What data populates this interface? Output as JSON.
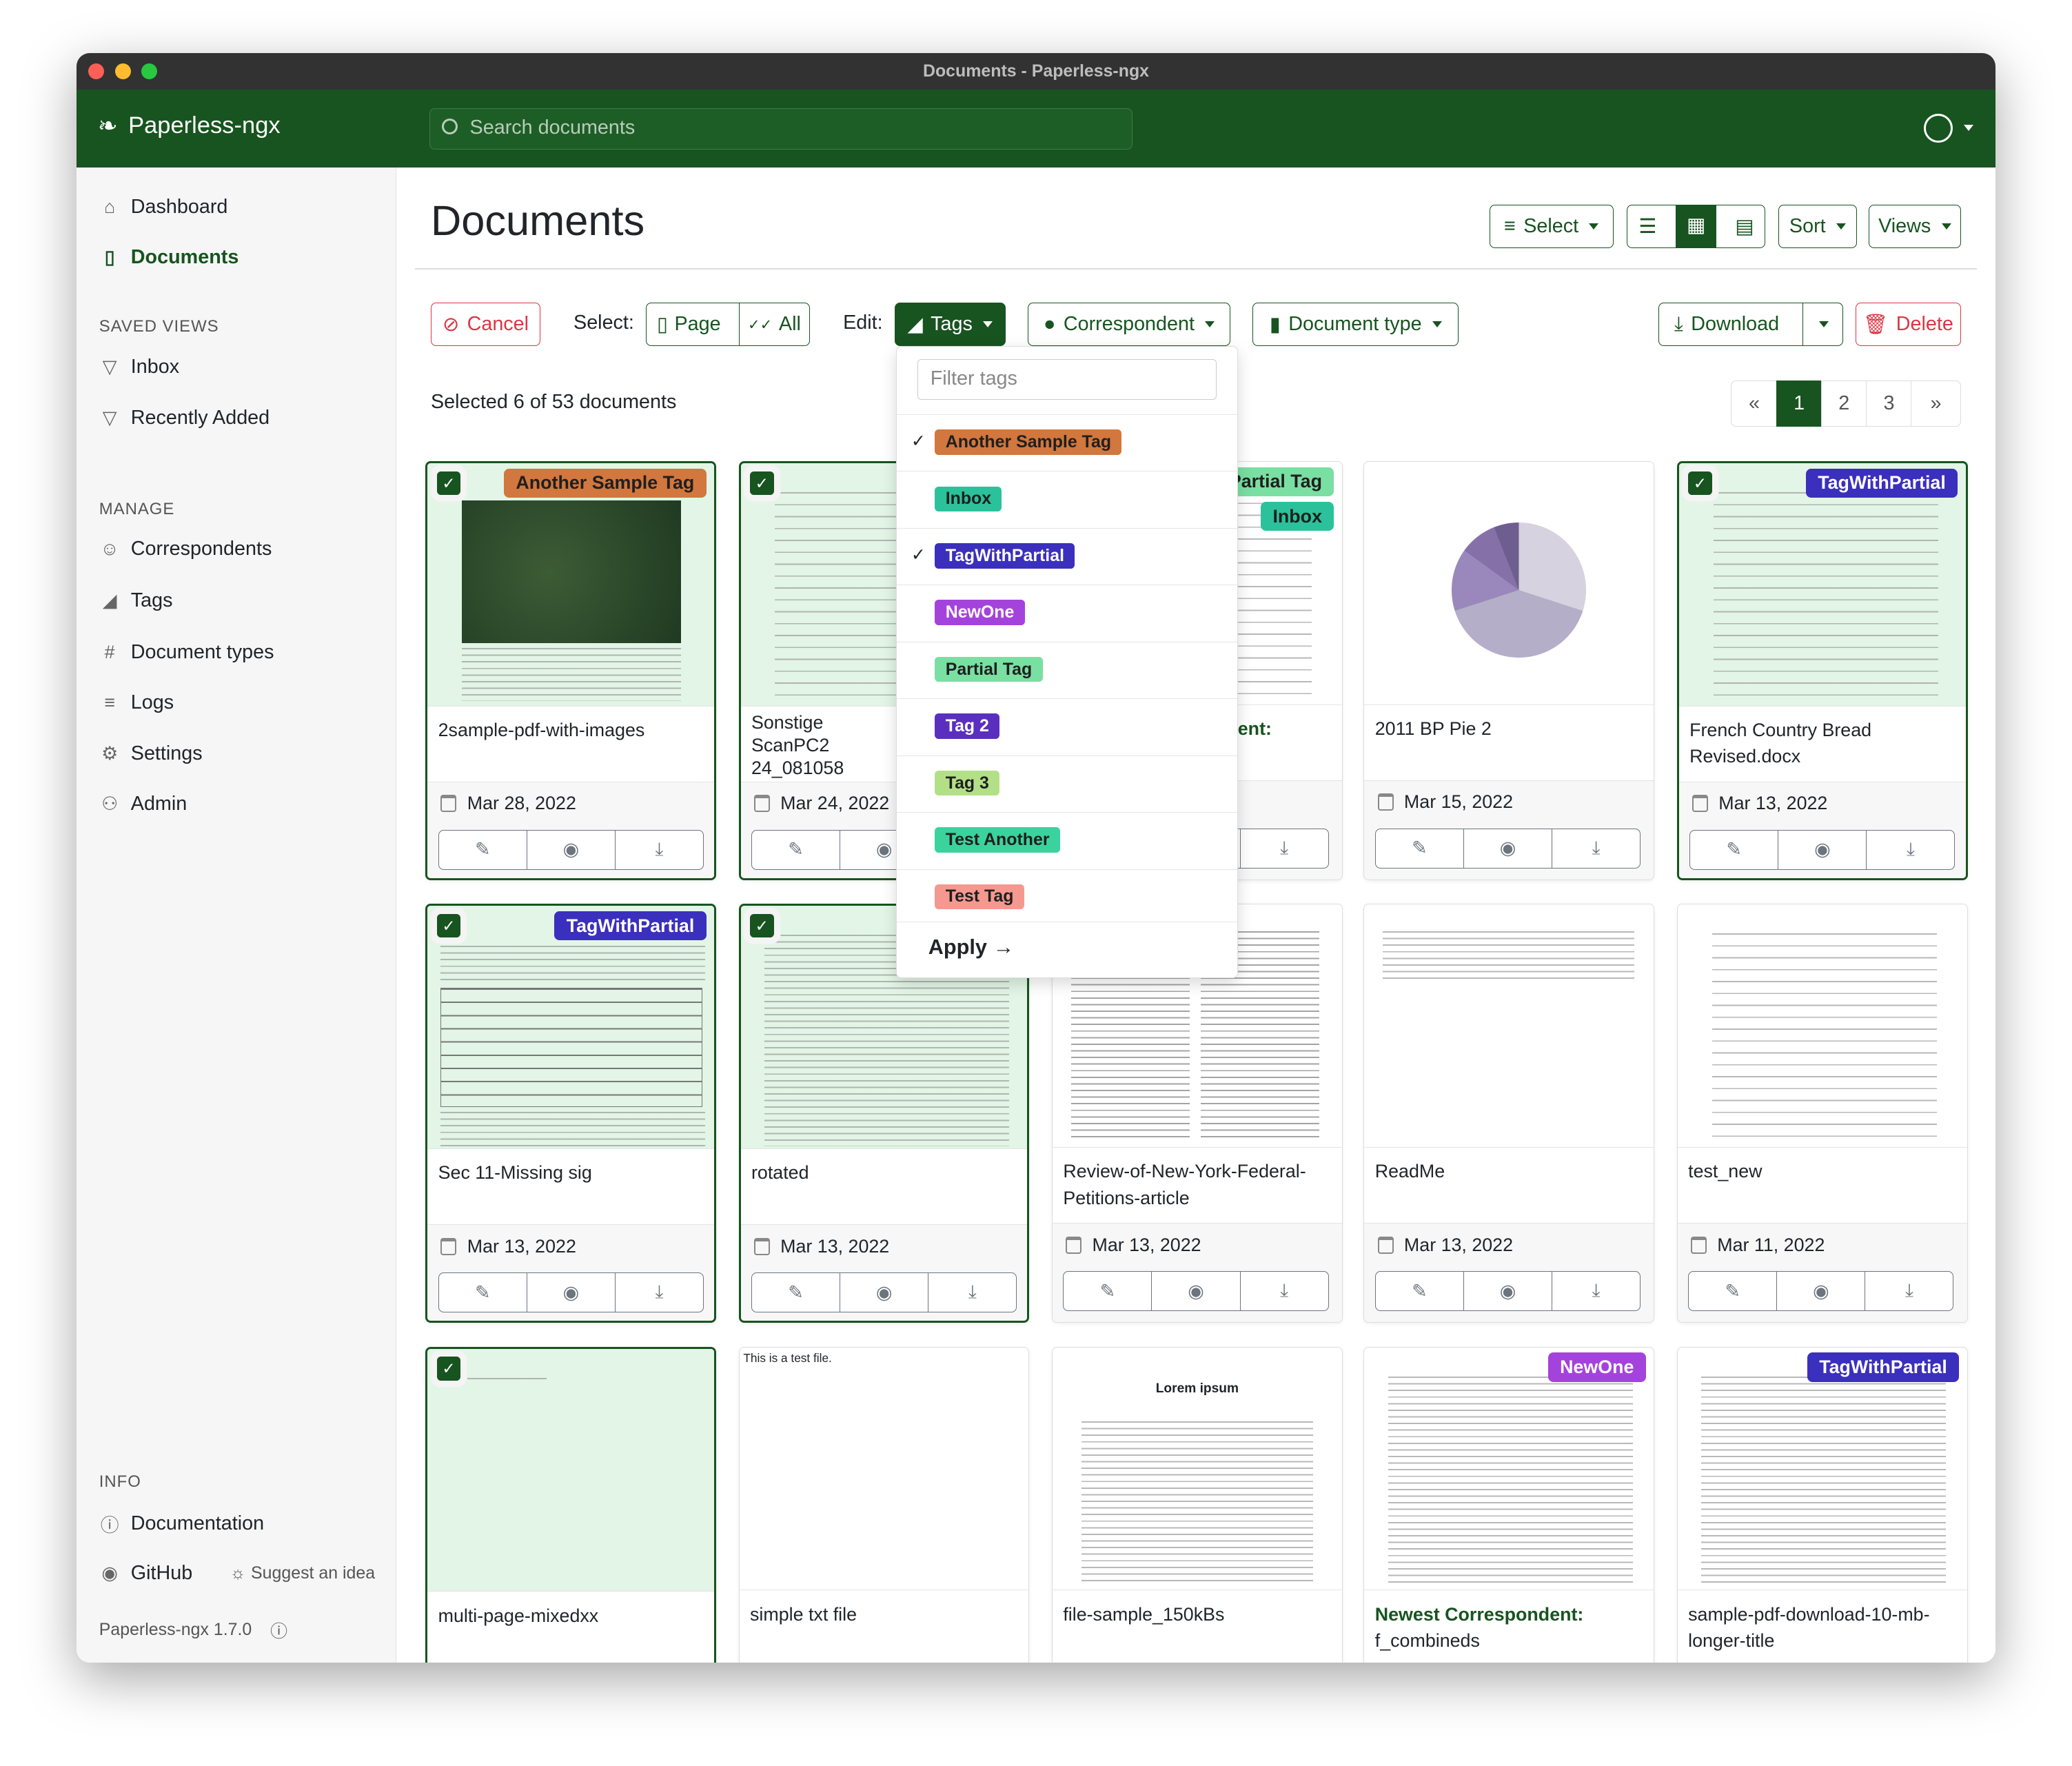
{
  "window": {
    "title": "Documents - Paperless-ngx"
  },
  "header": {
    "app_name": "Paperless-ngx",
    "search_placeholder": "Search documents"
  },
  "sidebar": {
    "items": [
      {
        "label": "Dashboard",
        "icon": "house-icon"
      },
      {
        "label": "Documents",
        "icon": "file-icon",
        "active": true
      }
    ],
    "saved_views_heading": "SAVED VIEWS",
    "saved_views": [
      {
        "label": "Inbox"
      },
      {
        "label": "Recently Added"
      }
    ],
    "manage_heading": "MANAGE",
    "manage": [
      {
        "label": "Correspondents",
        "icon": "person-icon"
      },
      {
        "label": "Tags",
        "icon": "tag-icon"
      },
      {
        "label": "Document types",
        "icon": "hash-icon"
      },
      {
        "label": "Logs",
        "icon": "list-icon"
      },
      {
        "label": "Settings",
        "icon": "gear-icon"
      },
      {
        "label": "Admin",
        "icon": "people-icon"
      }
    ],
    "info_heading": "INFO",
    "documentation": "Documentation",
    "github": "GitHub",
    "suggest": "Suggest an idea",
    "version": "Paperless-ngx 1.7.0"
  },
  "page": {
    "title": "Documents",
    "select": "Select",
    "sort": "Sort",
    "views": "Views"
  },
  "bulk": {
    "cancel": "Cancel",
    "select_label": "Select:",
    "page": "Page",
    "all": "All",
    "edit_label": "Edit:",
    "tags": "Tags",
    "correspondent": "Correspondent",
    "document_type": "Document type",
    "download": "Download",
    "delete": "Delete",
    "selected_text": "Selected 6 of 53 documents"
  },
  "pagination": {
    "prev": "«",
    "pages": [
      "1",
      "2",
      "3"
    ],
    "current": "1",
    "next": "»"
  },
  "tag_dropdown": {
    "filter_placeholder": "Filter tags",
    "apply": "Apply →",
    "tags": [
      {
        "name": "Another Sample Tag",
        "color": "#d2773d",
        "text": "#1f1f1f",
        "checked": true
      },
      {
        "name": "Inbox",
        "color": "#2bc29b",
        "text": "#1f1f1f",
        "checked": false
      },
      {
        "name": "TagWithPartial",
        "color": "#3b2fbd",
        "text": "#ffffff",
        "checked": true
      },
      {
        "name": "NewOne",
        "color": "#a443dc",
        "text": "#ffffff",
        "checked": false
      },
      {
        "name": "Partial Tag",
        "color": "#7adfa2",
        "text": "#1f1f1f",
        "checked": false
      },
      {
        "name": "Tag 2",
        "color": "#5a2fc0",
        "text": "#ffffff",
        "checked": false
      },
      {
        "name": "Tag 3",
        "color": "#b3e086",
        "text": "#1f1f1f",
        "checked": false
      },
      {
        "name": "Test Another",
        "color": "#3bd39d",
        "text": "#1f1f1f",
        "checked": false
      },
      {
        "name": "Test Tag",
        "color": "#f5988f",
        "text": "#1f1f1f",
        "checked": false
      }
    ]
  },
  "documents": [
    {
      "title": "2sample-pdf-with-images",
      "date": "Mar 28, 2022",
      "selected": true,
      "tags": [
        "Another Sample Tag"
      ],
      "thumb": "map"
    },
    {
      "title": "Sonstige ScanPC2 24_081058",
      "date": "Mar 24, 2022",
      "selected": true,
      "tags": [],
      "thumb": "text"
    },
    {
      "title": "",
      "correspondent": "Newest Correspondent:",
      "date": "",
      "selected": false,
      "tags": [
        "Partial Tag",
        "Inbox"
      ],
      "thumb": "text"
    },
    {
      "title": "2011 BP Pie 2",
      "date": "Mar 15, 2022",
      "selected": false,
      "tags": [],
      "thumb": "pie"
    },
    {
      "title": "French Country Bread Revised.docx",
      "date": "Mar 13, 2022",
      "selected": true,
      "tags": [
        "TagWithPartial"
      ],
      "thumb": "text"
    },
    {
      "title": "Sec 11-Missing sig",
      "date": "Mar 13, 2022",
      "selected": true,
      "tags": [
        "TagWithPartial"
      ],
      "thumb": "form"
    },
    {
      "title": "rotated",
      "date": "Mar 13, 2022",
      "selected": true,
      "tags": [],
      "thumb": "dense"
    },
    {
      "title": "Review-of-New-York-Federal-Petitions-article",
      "date": "Mar 13, 2022",
      "selected": false,
      "tags": [],
      "thumb": "columns"
    },
    {
      "title": "ReadMe",
      "date": "Mar 13, 2022",
      "selected": false,
      "tags": [],
      "thumb": "sparse"
    },
    {
      "title": "test_new",
      "date": "Mar 11, 2022",
      "selected": false,
      "tags": [],
      "thumb": "text"
    },
    {
      "title": "multi-page-mixedxx",
      "date": "",
      "selected": true,
      "tags": [],
      "thumb": "blank"
    },
    {
      "title": "simple txt file",
      "date": "",
      "selected": false,
      "tags": [],
      "thumb": "txt",
      "thumb_text": "This is a test file."
    },
    {
      "title": "file-sample_150kBs",
      "date": "",
      "selected": false,
      "tags": [],
      "thumb": "lorem",
      "thumb_text": "Lorem ipsum"
    },
    {
      "title": "f_combineds",
      "correspondent": "Newest Correspondent:",
      "date": "",
      "selected": false,
      "tags": [
        "NewOne"
      ],
      "thumb": "dense"
    },
    {
      "title": "sample-pdf-download-10-mb-longer-title",
      "date": "",
      "selected": false,
      "tags": [
        "TagWithPartial"
      ],
      "thumb": "dense"
    }
  ]
}
